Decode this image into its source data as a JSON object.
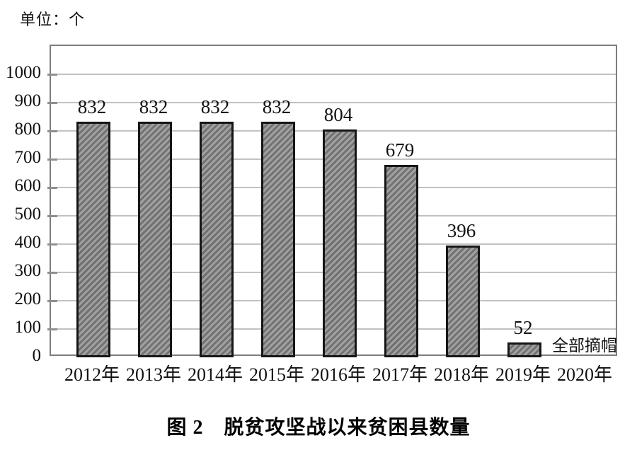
{
  "page": {
    "unit_label": "单位：个",
    "caption": "图 2　脱贫攻坚战以来贫困县数量"
  },
  "chart_data": {
    "type": "bar",
    "title": "图 2　脱贫攻坚战以来贫困县数量",
    "unit": "单位：个",
    "xlabel": "",
    "ylabel": "",
    "categories": [
      "2012年",
      "2013年",
      "2014年",
      "2015年",
      "2016年",
      "2017年",
      "2018年",
      "2019年",
      "2020年"
    ],
    "values": [
      832,
      832,
      832,
      832,
      804,
      679,
      396,
      52,
      null
    ],
    "bar_labels": [
      "832",
      "832",
      "832",
      "832",
      "804",
      "679",
      "396",
      "52",
      ""
    ],
    "annotations": [
      {
        "text": "全部摘帽",
        "category_index": 8
      }
    ],
    "ylim": [
      0,
      1100
    ],
    "yticks": [
      0,
      100,
      200,
      300,
      400,
      500,
      600,
      700,
      800,
      900,
      1000
    ],
    "grid": true,
    "legend_position": "none",
    "colors": {
      "bar_fill": "#a0a0a0",
      "bar_hatch_stripe": "#717171",
      "bar_hatch_direction": "/",
      "bar_border": "#161616",
      "axis_border": "#7d7d7d",
      "gridline": "#c2c2c2",
      "text": "#111111",
      "background": "#ffffff"
    }
  }
}
